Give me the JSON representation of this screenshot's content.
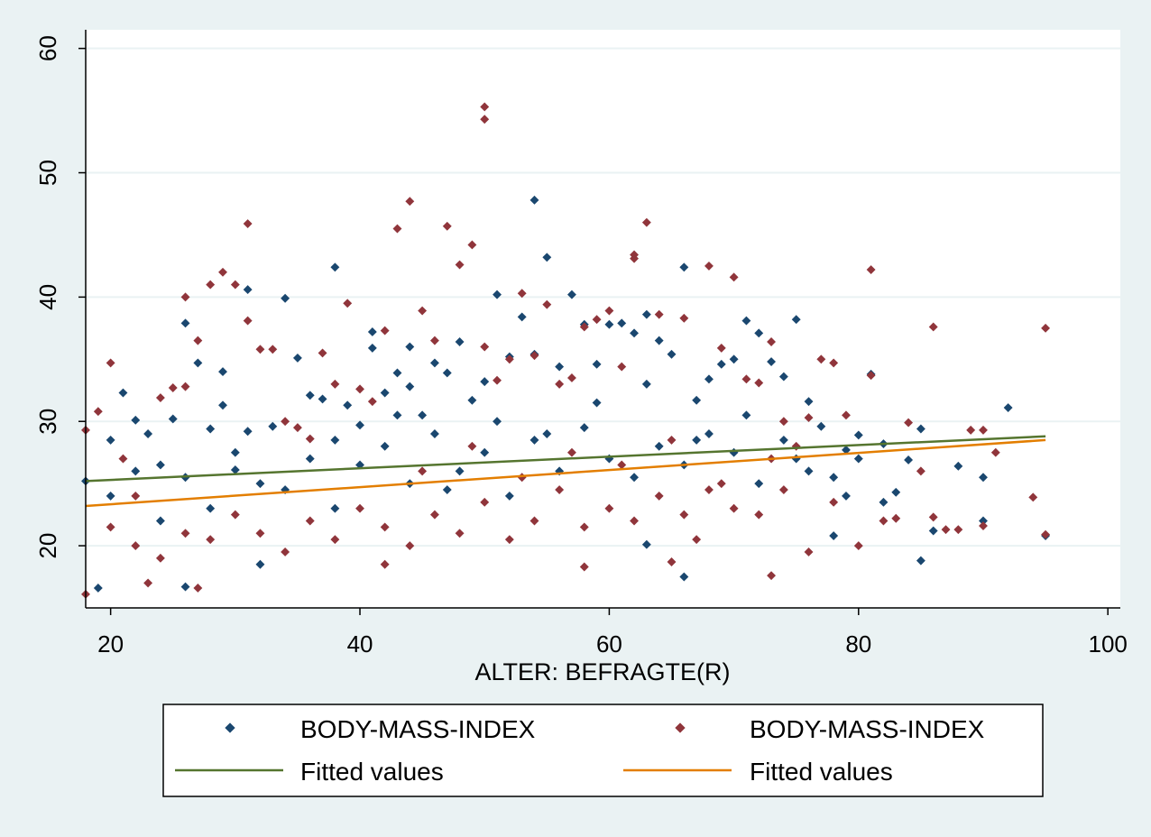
{
  "chart_data": {
    "type": "scatter",
    "title": "",
    "xlabel": "ALTER: BEFRAGTE(R)",
    "ylabel": "",
    "xlim": [
      18,
      101
    ],
    "ylim": [
      15,
      61.5
    ],
    "x_ticks": [
      20,
      40,
      60,
      80,
      100
    ],
    "y_ticks": [
      20,
      30,
      40,
      50,
      60
    ],
    "grid": "horizontal",
    "legend_position": "bottom",
    "colors": {
      "series_a": "#1a476f",
      "series_b": "#90353b",
      "fit_a": "#55752f",
      "fit_b": "#e37e00",
      "background": "#eaf2f3",
      "plot_area": "#ffffff",
      "gridline": "#eaf2f3"
    },
    "series": [
      {
        "name": "BODY-MASS-INDEX",
        "kind": "scatter",
        "color": "#1a476f",
        "points": [
          [
            18,
            25.2
          ],
          [
            19,
            16.6
          ],
          [
            20,
            28.5
          ],
          [
            21,
            32.3
          ],
          [
            22,
            30.1
          ],
          [
            23,
            29.0
          ],
          [
            24,
            26.5
          ],
          [
            25,
            30.2
          ],
          [
            26,
            37.9
          ],
          [
            26,
            16.7
          ],
          [
            27,
            34.7
          ],
          [
            28,
            29.4
          ],
          [
            29,
            34.0
          ],
          [
            29,
            31.3
          ],
          [
            30,
            26.1
          ],
          [
            31,
            40.6
          ],
          [
            31,
            29.2
          ],
          [
            32,
            18.5
          ],
          [
            33,
            29.6
          ],
          [
            34,
            39.9
          ],
          [
            35,
            35.1
          ],
          [
            36,
            32.1
          ],
          [
            37,
            31.8
          ],
          [
            38,
            42.4
          ],
          [
            38,
            28.5
          ],
          [
            39,
            31.3
          ],
          [
            40,
            29.7
          ],
          [
            41,
            37.2
          ],
          [
            41,
            35.9
          ],
          [
            42,
            32.3
          ],
          [
            43,
            33.9
          ],
          [
            44,
            36.0
          ],
          [
            44,
            32.8
          ],
          [
            45,
            30.5
          ],
          [
            46,
            34.7
          ],
          [
            47,
            33.9
          ],
          [
            48,
            36.4
          ],
          [
            49,
            31.7
          ],
          [
            50,
            33.2
          ],
          [
            51,
            40.2
          ],
          [
            52,
            35.2
          ],
          [
            53,
            38.4
          ],
          [
            54,
            47.8
          ],
          [
            54,
            35.4
          ],
          [
            55,
            43.2
          ],
          [
            56,
            34.4
          ],
          [
            57,
            40.2
          ],
          [
            58,
            37.8
          ],
          [
            59,
            34.6
          ],
          [
            60,
            37.8
          ],
          [
            61,
            37.9
          ],
          [
            62,
            37.1
          ],
          [
            63,
            38.6
          ],
          [
            63,
            20.1
          ],
          [
            64,
            36.5
          ],
          [
            65,
            35.4
          ],
          [
            66,
            42.4
          ],
          [
            66,
            17.5
          ],
          [
            67,
            31.7
          ],
          [
            68,
            33.4
          ],
          [
            69,
            34.6
          ],
          [
            70,
            35.0
          ],
          [
            71,
            38.1
          ],
          [
            72,
            37.1
          ],
          [
            73,
            34.8
          ],
          [
            74,
            33.6
          ],
          [
            75,
            38.2
          ],
          [
            76,
            31.6
          ],
          [
            77,
            29.6
          ],
          [
            78,
            20.8
          ],
          [
            79,
            27.7
          ],
          [
            80,
            28.9
          ],
          [
            81,
            33.8
          ],
          [
            82,
            28.2
          ],
          [
            83,
            24.3
          ],
          [
            84,
            26.9
          ],
          [
            85,
            29.4
          ],
          [
            85,
            18.8
          ],
          [
            86,
            21.2
          ],
          [
            88,
            26.4
          ],
          [
            90,
            25.5
          ],
          [
            90,
            22.0
          ],
          [
            92,
            31.1
          ],
          [
            95,
            20.8
          ],
          [
            20,
            24.0
          ],
          [
            22,
            26.0
          ],
          [
            24,
            22.0
          ],
          [
            26,
            25.5
          ],
          [
            28,
            23.0
          ],
          [
            30,
            27.5
          ],
          [
            32,
            25.0
          ],
          [
            34,
            24.5
          ],
          [
            36,
            27.0
          ],
          [
            38,
            23.0
          ],
          [
            40,
            26.5
          ],
          [
            42,
            28.0
          ],
          [
            44,
            25.0
          ],
          [
            46,
            29.0
          ],
          [
            48,
            26.0
          ],
          [
            50,
            27.5
          ],
          [
            52,
            24.0
          ],
          [
            54,
            28.5
          ],
          [
            56,
            26.0
          ],
          [
            58,
            29.5
          ],
          [
            60,
            27.0
          ],
          [
            62,
            25.5
          ],
          [
            64,
            28.0
          ],
          [
            66,
            26.5
          ],
          [
            68,
            29.0
          ],
          [
            70,
            27.5
          ],
          [
            72,
            25.0
          ],
          [
            74,
            28.5
          ],
          [
            76,
            26.0
          ],
          [
            78,
            25.5
          ],
          [
            80,
            27.0
          ],
          [
            82,
            23.5
          ],
          [
            43,
            30.5
          ],
          [
            47,
            24.5
          ],
          [
            51,
            30.0
          ],
          [
            55,
            29.0
          ],
          [
            59,
            31.5
          ],
          [
            63,
            33.0
          ],
          [
            67,
            28.5
          ],
          [
            71,
            30.5
          ],
          [
            75,
            27.0
          ],
          [
            79,
            24.0
          ]
        ]
      },
      {
        "name": "BODY-MASS-INDEX",
        "kind": "scatter",
        "color": "#90353b",
        "points": [
          [
            18,
            16.1
          ],
          [
            18,
            29.3
          ],
          [
            19,
            30.8
          ],
          [
            20,
            34.7
          ],
          [
            21,
            27.0
          ],
          [
            22,
            24.0
          ],
          [
            23,
            17.0
          ],
          [
            24,
            31.9
          ],
          [
            25,
            32.7
          ],
          [
            26,
            40.0
          ],
          [
            26,
            32.8
          ],
          [
            27,
            36.5
          ],
          [
            27,
            16.6
          ],
          [
            28,
            41.0
          ],
          [
            29,
            42.0
          ],
          [
            30,
            41.0
          ],
          [
            31,
            45.9
          ],
          [
            31,
            38.1
          ],
          [
            32,
            35.8
          ],
          [
            33,
            35.8
          ],
          [
            34,
            30.0
          ],
          [
            35,
            29.5
          ],
          [
            36,
            28.6
          ],
          [
            37,
            35.5
          ],
          [
            38,
            33.0
          ],
          [
            39,
            39.5
          ],
          [
            40,
            32.6
          ],
          [
            41,
            31.6
          ],
          [
            42,
            37.3
          ],
          [
            42,
            18.5
          ],
          [
            43,
            45.5
          ],
          [
            44,
            47.7
          ],
          [
            45,
            38.9
          ],
          [
            46,
            36.5
          ],
          [
            47,
            45.7
          ],
          [
            48,
            42.6
          ],
          [
            49,
            44.2
          ],
          [
            50,
            55.3
          ],
          [
            50,
            54.3
          ],
          [
            50,
            36.0
          ],
          [
            51,
            33.3
          ],
          [
            52,
            35.0
          ],
          [
            53,
            40.3
          ],
          [
            54,
            35.3
          ],
          [
            55,
            39.4
          ],
          [
            56,
            33.0
          ],
          [
            57,
            33.5
          ],
          [
            58,
            37.6
          ],
          [
            58,
            18.3
          ],
          [
            59,
            38.2
          ],
          [
            60,
            38.9
          ],
          [
            61,
            34.4
          ],
          [
            62,
            43.4
          ],
          [
            62,
            43.1
          ],
          [
            63,
            46.0
          ],
          [
            64,
            38.6
          ],
          [
            65,
            18.7
          ],
          [
            66,
            38.3
          ],
          [
            67,
            20.5
          ],
          [
            68,
            42.5
          ],
          [
            69,
            35.9
          ],
          [
            70,
            41.6
          ],
          [
            71,
            33.4
          ],
          [
            72,
            33.1
          ],
          [
            73,
            36.4
          ],
          [
            73,
            17.6
          ],
          [
            74,
            30.0
          ],
          [
            75,
            28.0
          ],
          [
            76,
            30.3
          ],
          [
            77,
            35.0
          ],
          [
            78,
            34.7
          ],
          [
            79,
            30.5
          ],
          [
            80,
            20.0
          ],
          [
            81,
            42.2
          ],
          [
            81,
            33.7
          ],
          [
            82,
            22.0
          ],
          [
            83,
            22.2
          ],
          [
            84,
            29.9
          ],
          [
            85,
            26.0
          ],
          [
            86,
            37.6
          ],
          [
            86,
            22.3
          ],
          [
            87,
            21.3
          ],
          [
            88,
            21.3
          ],
          [
            89,
            29.3
          ],
          [
            90,
            29.3
          ],
          [
            90,
            21.6
          ],
          [
            91,
            27.5
          ],
          [
            94,
            23.9
          ],
          [
            95,
            37.5
          ],
          [
            95,
            20.9
          ],
          [
            20,
            21.5
          ],
          [
            22,
            20.0
          ],
          [
            24,
            19.0
          ],
          [
            26,
            21.0
          ],
          [
            28,
            20.5
          ],
          [
            30,
            22.5
          ],
          [
            32,
            21.0
          ],
          [
            34,
            19.5
          ],
          [
            36,
            22.0
          ],
          [
            38,
            20.5
          ],
          [
            40,
            23.0
          ],
          [
            42,
            21.5
          ],
          [
            44,
            20.0
          ],
          [
            46,
            22.5
          ],
          [
            48,
            21.0
          ],
          [
            50,
            23.5
          ],
          [
            52,
            20.5
          ],
          [
            54,
            22.0
          ],
          [
            56,
            24.5
          ],
          [
            58,
            21.5
          ],
          [
            60,
            23.0
          ],
          [
            62,
            22.0
          ],
          [
            64,
            24.0
          ],
          [
            66,
            22.5
          ],
          [
            68,
            24.5
          ],
          [
            70,
            23.0
          ],
          [
            72,
            22.5
          ],
          [
            74,
            24.5
          ],
          [
            76,
            19.5
          ],
          [
            78,
            23.5
          ],
          [
            45,
            26.0
          ],
          [
            49,
            28.0
          ],
          [
            53,
            25.5
          ],
          [
            57,
            27.5
          ],
          [
            61,
            26.5
          ],
          [
            65,
            28.5
          ],
          [
            69,
            25.0
          ],
          [
            73,
            27.0
          ]
        ]
      },
      {
        "name": "Fitted values",
        "kind": "line",
        "color": "#55752f",
        "x": [
          18,
          95
        ],
        "y": [
          25.2,
          28.8
        ]
      },
      {
        "name": "Fitted values",
        "kind": "line",
        "color": "#e37e00",
        "x": [
          18,
          95
        ],
        "y": [
          23.2,
          28.5
        ]
      }
    ]
  }
}
